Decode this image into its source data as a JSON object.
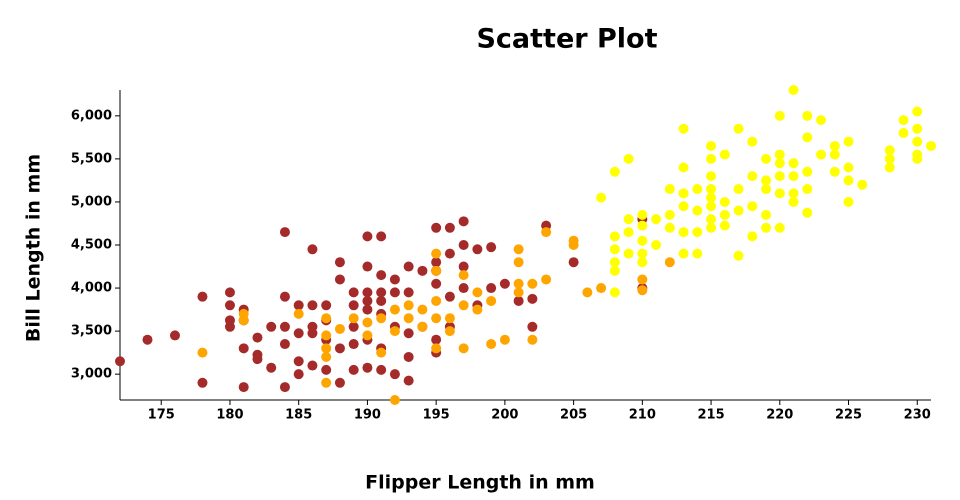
{
  "chart_data": {
    "type": "scatter",
    "title": "Scatter Plot",
    "x_label": "Flipper Length in mm",
    "y_label": "Bill Length in mm",
    "xlim": [
      172,
      231
    ],
    "ylim": [
      2700,
      6300
    ],
    "xticks": [
      175,
      180,
      185,
      190,
      195,
      200,
      205,
      210,
      215,
      220,
      225,
      230
    ],
    "yticks": [
      {
        "value": 3000,
        "label": "3,000"
      },
      {
        "value": 3500,
        "label": "3,500"
      },
      {
        "value": 4000,
        "label": "4,000"
      },
      {
        "value": 4500,
        "label": "4,500"
      },
      {
        "value": 5000,
        "label": "5,000"
      },
      {
        "value": 5500,
        "label": "5,500"
      },
      {
        "value": 6000,
        "label": "6,000"
      }
    ],
    "grid": false,
    "series": [
      {
        "color": "#a52a2a",
        "x": [
          172,
          174,
          176,
          178,
          178,
          180,
          180,
          180,
          180,
          181,
          181,
          181,
          181,
          182,
          182,
          182,
          183,
          183,
          184,
          184,
          184,
          184,
          184,
          185,
          185,
          185,
          185,
          186,
          186,
          186,
          186,
          186,
          187,
          187,
          187,
          187,
          188,
          188,
          188,
          188,
          189,
          189,
          189,
          189,
          189,
          190,
          190,
          190,
          190,
          190,
          190,
          190,
          191,
          191,
          191,
          191,
          191,
          191,
          191,
          192,
          192,
          192,
          192,
          193,
          193,
          193,
          193,
          193,
          194,
          194,
          195,
          195,
          195,
          195,
          195,
          195,
          196,
          196,
          196,
          196,
          197,
          197,
          197,
          197,
          198,
          198,
          199,
          199,
          200,
          201,
          202,
          202,
          203,
          205,
          210,
          210
        ],
        "y": [
          3150,
          3400,
          3450,
          3900,
          2900,
          3950,
          3800,
          3625,
          3550,
          3750,
          3625,
          3300,
          2850,
          3425,
          3225,
          3175,
          3550,
          3075,
          4650,
          3900,
          3550,
          3350,
          2850,
          3800,
          3475,
          3150,
          3000,
          4450,
          3800,
          3550,
          3475,
          3100,
          3800,
          3625,
          3400,
          3050,
          4300,
          4100,
          3300,
          2900,
          3950,
          3800,
          3550,
          3350,
          3050,
          4600,
          4250,
          3950,
          3850,
          3750,
          3400,
          3075,
          4600,
          4150,
          3950,
          3850,
          3700,
          3300,
          3050,
          4100,
          3950,
          3550,
          3000,
          4250,
          3950,
          3475,
          3200,
          2925,
          4200,
          3550,
          4700,
          4300,
          4200,
          4050,
          3400,
          3250,
          4700,
          4400,
          3900,
          3550,
          4775,
          4500,
          4250,
          4000,
          4450,
          3800,
          4475,
          4000,
          4050,
          3850,
          3875,
          3550,
          4725,
          4300,
          4800,
          4000
        ]
      },
      {
        "color": "#ffa500",
        "x": [
          178,
          181,
          181,
          185,
          187,
          187,
          187,
          187,
          187,
          188,
          189,
          190,
          190,
          191,
          191,
          192,
          192,
          192,
          193,
          193,
          194,
          194,
          195,
          195,
          195,
          195,
          195,
          196,
          196,
          197,
          197,
          197,
          198,
          198,
          199,
          199,
          200,
          201,
          201,
          201,
          201,
          202,
          202,
          203,
          203,
          205,
          205,
          206,
          207,
          210,
          210,
          212
        ],
        "y": [
          3250,
          3700,
          3625,
          3700,
          3650,
          3450,
          3300,
          3200,
          2900,
          3525,
          3650,
          3600,
          3450,
          3650,
          3250,
          2700,
          3750,
          3500,
          3800,
          3650,
          3750,
          3550,
          4400,
          4200,
          3850,
          3650,
          3300,
          3650,
          3500,
          4150,
          3800,
          3300,
          3950,
          3750,
          3850,
          3350,
          3400,
          4450,
          4300,
          4050,
          3950,
          4050,
          3400,
          4100,
          4650,
          4550,
          4500,
          3950,
          4000,
          4100,
          3975,
          4300
        ]
      },
      {
        "color": "#ffff00",
        "x": [
          207,
          208,
          208,
          208,
          208,
          208,
          208,
          209,
          209,
          209,
          209,
          210,
          210,
          210,
          210,
          210,
          211,
          211,
          212,
          212,
          212,
          213,
          213,
          213,
          213,
          213,
          213,
          214,
          214,
          214,
          214,
          215,
          215,
          215,
          215,
          215,
          215,
          215,
          215,
          216,
          216,
          216,
          216,
          217,
          217,
          217,
          217,
          218,
          218,
          218,
          218,
          219,
          219,
          219,
          219,
          219,
          220,
          220,
          220,
          220,
          220,
          220,
          221,
          221,
          221,
          221,
          221,
          222,
          222,
          222,
          222,
          222,
          223,
          223,
          224,
          224,
          224,
          225,
          225,
          225,
          225,
          226,
          228,
          228,
          228,
          229,
          229,
          230,
          230,
          230,
          230,
          230,
          231
        ],
        "y": [
          5050,
          4600,
          4450,
          4300,
          4200,
          3950,
          5350,
          5500,
          4800,
          4650,
          4400,
          4850,
          4725,
          4550,
          4400,
          4300,
          4800,
          4500,
          5150,
          4850,
          4700,
          5850,
          5400,
          5100,
          4950,
          4650,
          4400,
          5150,
          4900,
          4650,
          4400,
          5650,
          5500,
          5300,
          5150,
          5050,
          4950,
          4800,
          4700,
          5550,
          5000,
          4850,
          4725,
          5850,
          5150,
          4900,
          4375,
          5700,
          5300,
          4950,
          4600,
          5500,
          5250,
          5150,
          4850,
          4700,
          6000,
          5550,
          5450,
          5300,
          5100,
          4700,
          6300,
          5450,
          5300,
          5100,
          5000,
          6000,
          5750,
          5350,
          5150,
          4875,
          5950,
          5550,
          5650,
          5550,
          5350,
          5700,
          5400,
          5250,
          5000,
          5200,
          5600,
          5500,
          5400,
          5950,
          5800,
          6050,
          5850,
          5700,
          5550,
          5500,
          5650
        ]
      }
    ]
  }
}
